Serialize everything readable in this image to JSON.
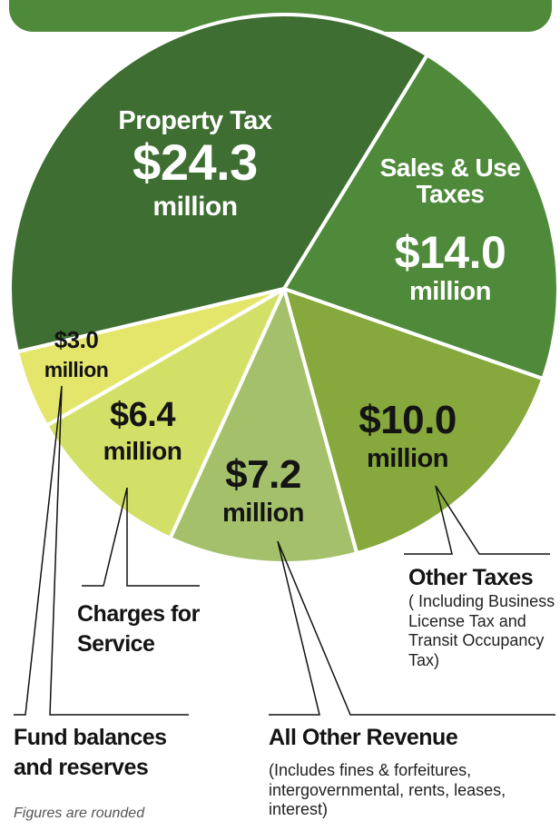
{
  "chart_data": {
    "type": "pie",
    "categories": [
      "Property Tax",
      "Sales & Use Taxes",
      "Other Taxes",
      "All Other Revenue",
      "Charges for Service",
      "Fund balances and reserves"
    ],
    "values": [
      24.3,
      14.0,
      10.0,
      7.2,
      6.4,
      3.0
    ],
    "value_labels": [
      "$24.3",
      "$14.0",
      "$10.0",
      "$7.2",
      "$6.4",
      "$3.0"
    ],
    "unit": "million",
    "colors": [
      "#3e6e32",
      "#4f8a3b",
      "#86a83c",
      "#a4c06b",
      "#d3e068",
      "#e4e66c"
    ],
    "descriptions": [
      null,
      null,
      "( Including Business License Tax and Transit Occupancy Tax)",
      "(Includes fines & forfeitures, intergovernmental, rents, leases, interest)",
      null,
      null
    ],
    "note": "Figures are rounded"
  }
}
